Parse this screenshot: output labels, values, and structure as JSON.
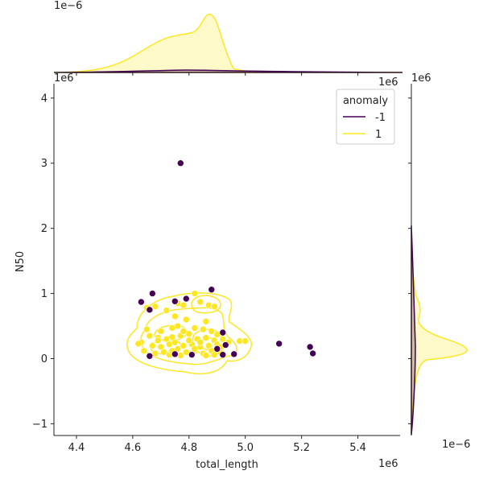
{
  "chart_data": {
    "type": "scatter",
    "xlabel": "total_length",
    "ylabel": "N50",
    "x_offset_label": "1e6",
    "y_offset_label": "1e6",
    "top_marginal_offset_label": "1e−6",
    "right_marginal_offset_label": "1e−6",
    "right_marginal_x_offset_label": "1e6",
    "xlim": [
      4.32,
      5.55
    ],
    "ylim": [
      -1.18,
      4.22
    ],
    "x_ticks": [
      "4.4",
      "4.6",
      "4.8",
      "5.0",
      "5.2",
      "5.4"
    ],
    "y_ticks": [
      "−1",
      "0",
      "1",
      "2",
      "3",
      "4"
    ],
    "x_tick_values": [
      4.4,
      4.6,
      4.8,
      5.0,
      5.2,
      5.4
    ],
    "y_tick_values": [
      -1,
      0,
      1,
      2,
      3,
      4
    ],
    "legend": {
      "title": "anomaly",
      "placement": "top-right",
      "entries": [
        {
          "label": "-1",
          "color": "#440154"
        },
        {
          "label": "1",
          "color": "#fde725"
        }
      ]
    },
    "series": [
      {
        "name": "-1",
        "color": "#440154",
        "points": [
          [
            4.77,
            3.0
          ],
          [
            4.63,
            0.87
          ],
          [
            4.67,
            1.0
          ],
          [
            4.75,
            0.88
          ],
          [
            4.79,
            0.92
          ],
          [
            4.88,
            1.06
          ],
          [
            4.66,
            0.75
          ],
          [
            5.12,
            0.23
          ],
          [
            5.23,
            0.18
          ],
          [
            5.24,
            0.08
          ],
          [
            4.66,
            0.04
          ],
          [
            4.75,
            0.07
          ],
          [
            4.81,
            0.06
          ],
          [
            4.9,
            0.15
          ],
          [
            4.92,
            0.4
          ],
          [
            4.93,
            0.21
          ],
          [
            4.96,
            0.07
          ],
          [
            4.92,
            0.06
          ]
        ]
      },
      {
        "name": "1",
        "color": "#fde725",
        "points": [
          [
            4.82,
            1.0
          ],
          [
            4.84,
            0.87
          ],
          [
            4.76,
            0.85
          ],
          [
            4.78,
            0.82
          ],
          [
            4.87,
            0.82
          ],
          [
            4.89,
            0.8
          ],
          [
            4.72,
            0.74
          ],
          [
            4.68,
            0.8
          ],
          [
            4.65,
            0.78
          ],
          [
            4.75,
            0.65
          ],
          [
            4.79,
            0.6
          ],
          [
            4.86,
            0.57
          ],
          [
            4.76,
            0.5
          ],
          [
            4.74,
            0.47
          ],
          [
            4.82,
            0.47
          ],
          [
            4.85,
            0.45
          ],
          [
            4.88,
            0.42
          ],
          [
            4.9,
            0.37
          ],
          [
            4.7,
            0.42
          ],
          [
            4.65,
            0.45
          ],
          [
            4.66,
            0.35
          ],
          [
            4.69,
            0.32
          ],
          [
            4.72,
            0.3
          ],
          [
            4.74,
            0.33
          ],
          [
            4.77,
            0.35
          ],
          [
            4.8,
            0.38
          ],
          [
            4.83,
            0.3
          ],
          [
            4.86,
            0.32
          ],
          [
            4.89,
            0.28
          ],
          [
            4.92,
            0.3
          ],
          [
            4.63,
            0.25
          ],
          [
            4.64,
            0.12
          ],
          [
            4.67,
            0.2
          ],
          [
            4.7,
            0.18
          ],
          [
            4.71,
            0.1
          ],
          [
            4.73,
            0.22
          ],
          [
            4.75,
            0.25
          ],
          [
            4.76,
            0.15
          ],
          [
            4.78,
            0.2
          ],
          [
            4.79,
            0.1
          ],
          [
            4.81,
            0.22
          ],
          [
            4.82,
            0.12
          ],
          [
            4.84,
            0.18
          ],
          [
            4.85,
            0.08
          ],
          [
            4.87,
            0.2
          ],
          [
            4.88,
            0.12
          ],
          [
            4.9,
            0.22
          ],
          [
            4.91,
            0.1
          ],
          [
            4.94,
            0.25
          ],
          [
            4.98,
            0.27
          ],
          [
            5.0,
            0.27
          ],
          [
            4.68,
            0.08
          ],
          [
            4.73,
            0.06
          ],
          [
            4.77,
            0.05
          ],
          [
            4.8,
            0.28
          ],
          [
            4.84,
            0.25
          ],
          [
            4.86,
            0.05
          ],
          [
            4.89,
            0.06
          ],
          [
            4.62,
            0.23
          ],
          [
            4.69,
            0.28
          ],
          [
            4.78,
            0.42
          ],
          [
            4.82,
            0.15
          ],
          [
            4.74,
            0.12
          ],
          [
            4.91,
            0.18
          ]
        ]
      }
    ],
    "marginals": {
      "top": "kde of total_length per anomaly group",
      "right": "kde of N50 per anomaly group"
    }
  }
}
